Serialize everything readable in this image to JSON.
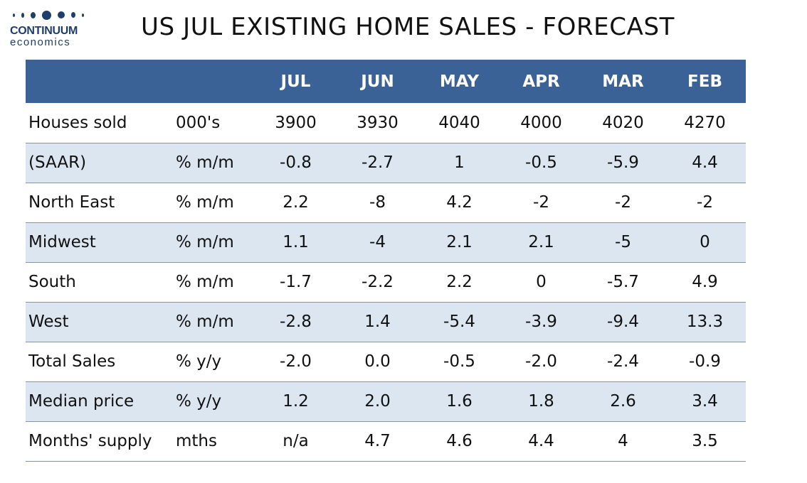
{
  "brand": {
    "name": "CONTINUUM",
    "sub": "economics"
  },
  "title": "US JUL EXISTING HOME SALES - FORECAST",
  "chart_data": {
    "type": "table",
    "title": "US JUL EXISTING HOME SALES - FORECAST",
    "columns": [
      "",
      "",
      "JUL",
      "JUN",
      "MAY",
      "APR",
      "MAR",
      "FEB"
    ],
    "rows": [
      {
        "label": "Houses sold",
        "unit": "000's",
        "values": [
          "3900",
          "3930",
          "4040",
          "4000",
          "4020",
          "4270"
        ]
      },
      {
        "label": "(SAAR)",
        "unit": "% m/m",
        "values": [
          "-0.8",
          "-2.7",
          "1",
          "-0.5",
          "-5.9",
          "4.4"
        ]
      },
      {
        "label": "North East",
        "unit": "% m/m",
        "values": [
          "2.2",
          "-8",
          "4.2",
          "-2",
          "-2",
          "-2"
        ]
      },
      {
        "label": "Midwest",
        "unit": "% m/m",
        "values": [
          "1.1",
          "-4",
          "2.1",
          "2.1",
          "-5",
          "0"
        ]
      },
      {
        "label": "South",
        "unit": "% m/m",
        "values": [
          "-1.7",
          "-2.2",
          "2.2",
          "0",
          "-5.7",
          "4.9"
        ]
      },
      {
        "label": "West",
        "unit": "% m/m",
        "values": [
          "-2.8",
          "1.4",
          "-5.4",
          "-3.9",
          "-9.4",
          "13.3"
        ]
      },
      {
        "label": "Total Sales",
        "unit": "% y/y",
        "values": [
          "-2.0",
          "0.0",
          "-0.5",
          "-2.0",
          "-2.4",
          "-0.9"
        ]
      },
      {
        "label": "Median price",
        "unit": "% y/y",
        "values": [
          "1.2",
          "2.0",
          "1.6",
          "1.8",
          "2.6",
          "3.4"
        ]
      },
      {
        "label": "Months' supply",
        "unit": "mths",
        "values": [
          "n/a",
          "4.7",
          "4.6",
          "4.4",
          "4",
          "3.5"
        ]
      }
    ],
    "header_color": "#3b6296",
    "band_color": "#dce6f1"
  }
}
